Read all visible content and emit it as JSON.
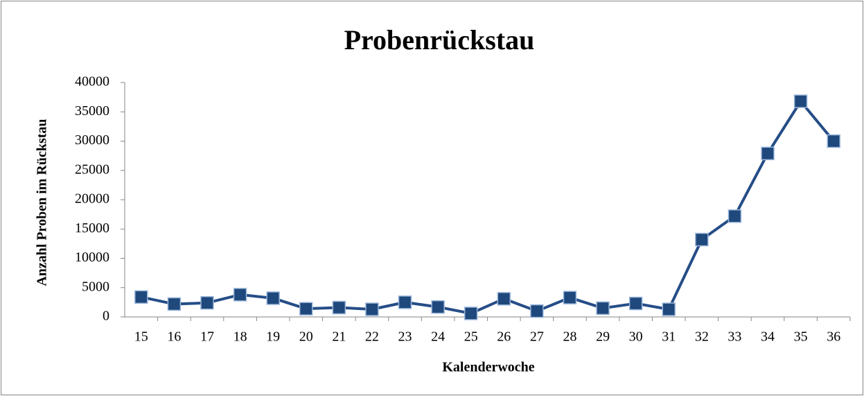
{
  "chart_data": {
    "type": "line",
    "title": "Probenrückstau",
    "x_label": "Kalenderwoche",
    "y_label": "Anzahl Proben im Rückstau",
    "categories": [
      "15",
      "16",
      "17",
      "18",
      "19",
      "20",
      "21",
      "22",
      "23",
      "24",
      "25",
      "26",
      "27",
      "28",
      "29",
      "30",
      "31",
      "32",
      "33",
      "34",
      "35",
      "36"
    ],
    "series": [
      {
        "name": "Probenrückstau",
        "color": "#254d87",
        "marker_color": "#1f487c",
        "values": [
          3400,
          2200,
          2400,
          3800,
          3200,
          1400,
          1600,
          1300,
          2500,
          1700,
          600,
          3100,
          1000,
          3300,
          1500,
          2300,
          1300,
          13200,
          17200,
          27900,
          36800,
          30000
        ]
      }
    ],
    "ylim": [
      0,
      40000
    ],
    "yticks": [
      0,
      5000,
      10000,
      15000,
      20000,
      25000,
      30000,
      35000,
      40000
    ],
    "grid": false,
    "legend": false
  }
}
